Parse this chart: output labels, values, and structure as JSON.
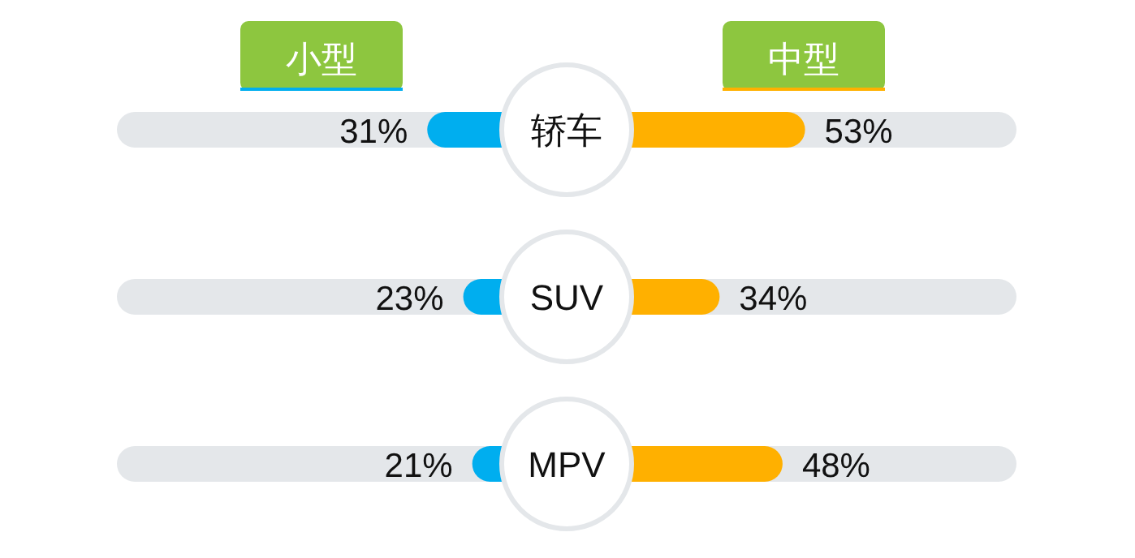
{
  "chart_data": [
    {
      "type": "bar",
      "orientation": "horizontal",
      "categories": [
        "轿车",
        "SUV",
        "MPV"
      ],
      "series": [
        {
          "name": "小型",
          "color": "#00aeef",
          "values": [
            31,
            23,
            21
          ],
          "value_labels": [
            "31%",
            "23%",
            "21%"
          ]
        }
      ],
      "xlim": [
        100,
        0
      ],
      "tick_labels": false,
      "legend": "top"
    },
    {
      "type": "bar",
      "orientation": "horizontal",
      "categories": [
        null,
        null,
        null
      ],
      "series": [
        {
          "name": "中型",
          "color": "#ffb000",
          "values": [
            53,
            34,
            48
          ],
          "value_labels": [
            "53%",
            "34%",
            "48%"
          ]
        }
      ],
      "xlim": [
        0,
        100
      ],
      "tick_labels": false,
      "legend": "top"
    }
  ]
}
